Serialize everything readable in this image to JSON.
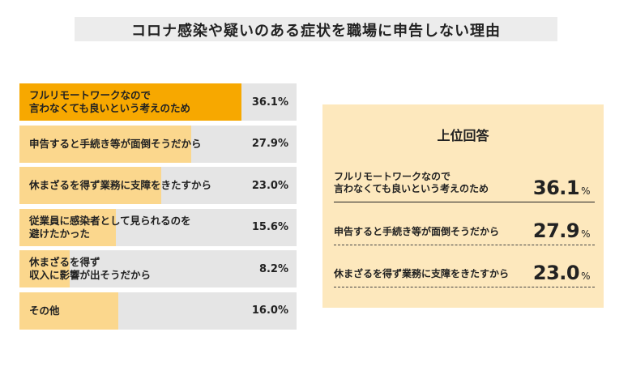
{
  "title": "コロナ感染や疑いのある症状を職場に申告しない理由",
  "chart_data": {
    "type": "bar",
    "orientation": "horizontal",
    "title": "コロナ感染や疑いのある症状を職場に申告しない理由",
    "categories": [
      "フルリモートワークなので\n言わなくても良いという考えのため",
      "申告すると手続き等が面倒そうだから",
      "休まざるを得ず業務に支障をきたすから",
      "従業員に感染者として見られるのを\n避けたかった",
      "休まざるを得ず\n収入に影響が出そうだから",
      "その他"
    ],
    "values": [
      36.1,
      27.9,
      23.0,
      15.6,
      8.2,
      16.0
    ],
    "value_labels": [
      "36.1%",
      "27.9%",
      "23.0%",
      "15.6%",
      "8.2%",
      "16.0%"
    ],
    "unit": "%",
    "xlim": [
      0,
      45
    ],
    "colors": {
      "highlight": "#f7a800",
      "bar": "#fbd78d",
      "track": "#e5e5e5"
    }
  },
  "top_answers": {
    "heading": "上位回答",
    "items": [
      {
        "label": "フルリモートワークなので\n言わなくても良いという考えのため",
        "value": "36.1",
        "unit": "%"
      },
      {
        "label": "申告すると手続き等が面倒そうだから",
        "value": "27.9",
        "unit": "%"
      },
      {
        "label": "休まざるを得ず業務に支障をきたすから",
        "value": "23.0",
        "unit": "%"
      }
    ],
    "background": "#fde8bd"
  }
}
